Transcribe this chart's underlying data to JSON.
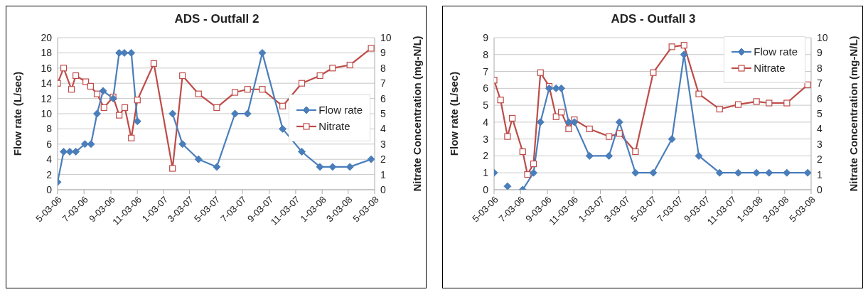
{
  "chart_data": [
    {
      "type": "line",
      "title": "ADS - Outfall 2",
      "ylabel": "Flow rate (L/sec)",
      "y2label": "Nitrate Concentration (mg-N/L)",
      "legend": "right",
      "grid": "y",
      "line_style": "solid",
      "xlim": [
        "2006-05-03",
        "2008-05-03"
      ],
      "xticks": [
        {
          "value": "2006-05-03",
          "label": "5-03-06"
        },
        {
          "value": "2006-07-03",
          "label": "7-03-06"
        },
        {
          "value": "2006-09-03",
          "label": "9-03-06"
        },
        {
          "value": "2006-11-03",
          "label": "11-03-06"
        },
        {
          "value": "2007-01-03",
          "label": "1-03-07"
        },
        {
          "value": "2007-03-03",
          "label": "3-03-07"
        },
        {
          "value": "2007-05-03",
          "label": "5-03-07"
        },
        {
          "value": "2007-07-03",
          "label": "7-03-07"
        },
        {
          "value": "2007-09-03",
          "label": "9-03-07"
        },
        {
          "value": "2007-11-03",
          "label": "11-03-07"
        },
        {
          "value": "2008-01-03",
          "label": "1-03-08"
        },
        {
          "value": "2008-03-03",
          "label": "3-03-08"
        },
        {
          "value": "2008-05-03",
          "label": "5-03-08"
        }
      ],
      "ylim": [
        0,
        20
      ],
      "yticks": [
        0,
        2,
        4,
        6,
        8,
        10,
        12,
        14,
        16,
        18,
        20
      ],
      "y2lim": [
        0,
        10
      ],
      "y2ticks": [
        0,
        1,
        2,
        3,
        4,
        5,
        6,
        7,
        8,
        9,
        10
      ],
      "series": [
        {
          "name": "Flow rate",
          "color": "#4a7ebb",
          "marker": "diamond",
          "x": [
            "2006-05-03",
            "2006-05-17",
            "2006-05-31",
            "2006-06-14",
            "2006-07-05",
            "2006-07-19",
            "2006-08-02",
            "2006-08-16",
            "2006-09-08",
            "2006-09-22",
            "2006-10-04",
            "2006-10-20",
            "2006-11-03",
            "2006-12-11",
            "2007-01-23",
            "2007-02-15",
            "2007-03-24",
            "2007-05-05",
            "2007-06-16",
            "2007-07-15",
            "2007-08-18",
            "2007-10-04",
            "2007-11-17",
            "2007-12-29",
            "2008-01-27",
            "2008-03-07",
            "2008-04-25"
          ],
          "values": [
            1,
            5,
            5,
            5,
            6,
            6,
            10,
            13,
            12,
            18,
            18,
            18,
            9,
            null,
            10,
            6,
            4,
            3,
            10,
            10,
            18,
            8,
            5,
            3,
            3,
            3,
            4
          ]
        },
        {
          "name": "Nitrate",
          "color": "#be4b48",
          "marker": "square",
          "axis": "y2",
          "x": [
            "2006-05-03",
            "2006-05-17",
            "2006-06-04",
            "2006-06-14",
            "2006-07-07",
            "2006-07-18",
            "2006-08-02",
            "2006-08-18",
            "2006-09-08",
            "2006-09-22",
            "2006-10-05",
            "2006-10-20",
            "2006-11-03",
            "2006-12-11",
            "2007-01-23",
            "2007-02-15",
            "2007-03-24",
            "2007-05-05",
            "2007-06-16",
            "2007-07-15",
            "2007-08-18",
            "2007-10-04",
            "2007-11-17",
            "2007-12-29",
            "2008-01-27",
            "2008-03-07",
            "2008-04-25"
          ],
          "values": [
            7,
            8,
            6.6,
            7.5,
            7.1,
            6.8,
            6.3,
            5.4,
            6.1,
            4.9,
            5.4,
            3.4,
            5.9,
            8.3,
            1.4,
            7.5,
            6.3,
            5.4,
            6.4,
            6.6,
            6.6,
            5.5,
            7,
            7.5,
            8,
            8.2,
            9.3
          ]
        }
      ]
    },
    {
      "type": "line",
      "title": "ADS - Outfall 3",
      "ylabel": "Flow rate (L/sec)",
      "y2label": "Nitrate Concentration (mg-N/L)",
      "legend": "top right",
      "grid": "y",
      "line_style": "solid",
      "xlim": [
        "2006-05-03",
        "2008-05-03"
      ],
      "xticks": [
        {
          "value": "2006-05-03",
          "label": "5-03-06"
        },
        {
          "value": "2006-07-03",
          "label": "7-03-06"
        },
        {
          "value": "2006-09-03",
          "label": "9-03-06"
        },
        {
          "value": "2006-11-03",
          "label": "11-03-06"
        },
        {
          "value": "2007-01-03",
          "label": "1-03-07"
        },
        {
          "value": "2007-03-03",
          "label": "3-03-07"
        },
        {
          "value": "2007-05-03",
          "label": "5-03-07"
        },
        {
          "value": "2007-07-03",
          "label": "7-03-07"
        },
        {
          "value": "2007-09-03",
          "label": "9-03-07"
        },
        {
          "value": "2007-11-03",
          "label": "11-03-07"
        },
        {
          "value": "2008-01-03",
          "label": "1-03-08"
        },
        {
          "value": "2008-03-03",
          "label": "3-03-08"
        },
        {
          "value": "2008-05-03",
          "label": "5-03-08"
        }
      ],
      "ylim": [
        0,
        9
      ],
      "yticks": [
        0,
        1,
        2,
        3,
        4,
        5,
        6,
        7,
        8,
        9
      ],
      "y2lim": [
        0,
        10
      ],
      "y2ticks": [
        0,
        1,
        2,
        3,
        4,
        5,
        6,
        7,
        8,
        9,
        10
      ],
      "series": [
        {
          "name": "Flow rate",
          "color": "#4a7ebb",
          "marker": "diamond",
          "x": [
            "2006-05-03",
            "2006-05-18",
            "2006-06-03",
            "2006-06-14",
            "2006-07-08",
            "2006-08-02",
            "2006-08-18",
            "2006-09-07",
            "2006-09-23",
            "2006-10-05",
            "2006-10-22",
            "2006-11-04",
            "2006-12-09",
            "2007-01-23",
            "2007-02-16",
            "2007-03-25",
            "2007-05-05",
            "2007-06-17",
            "2007-07-15",
            "2007-08-18",
            "2007-10-05",
            "2007-11-17",
            "2007-12-29",
            "2008-01-27",
            "2008-03-08",
            "2008-04-25"
          ],
          "values": [
            1,
            null,
            0.2,
            null,
            0,
            1,
            4,
            6,
            6,
            6,
            4,
            4,
            2,
            2,
            4,
            1,
            1,
            3,
            8,
            2,
            1,
            1,
            1,
            1,
            1,
            1
          ]
        },
        {
          "name": "Nitrate",
          "color": "#be4b48",
          "marker": "square",
          "axis": "y2",
          "x": [
            "2006-05-03",
            "2006-05-18",
            "2006-06-03",
            "2006-06-14",
            "2006-07-08",
            "2006-07-19",
            "2006-08-02",
            "2006-08-18",
            "2006-09-07",
            "2006-09-23",
            "2006-10-05",
            "2006-10-22",
            "2006-11-04",
            "2006-12-09",
            "2007-01-23",
            "2007-02-16",
            "2007-03-25",
            "2007-05-05",
            "2007-06-17",
            "2007-07-15",
            "2007-08-18",
            "2007-10-05",
            "2007-11-17",
            "2007-12-29",
            "2008-01-27",
            "2008-03-08",
            "2008-04-25"
          ],
          "values": [
            7.2,
            5.9,
            3.5,
            4.7,
            2.5,
            1,
            1.7,
            7.7,
            6.8,
            4.8,
            5.1,
            4,
            4.6,
            4,
            3.5,
            3.7,
            2.5,
            7.7,
            9.4,
            9.5,
            6.3,
            5.3,
            5.6,
            5.8,
            5.7,
            5.7,
            6.9
          ]
        }
      ]
    }
  ]
}
